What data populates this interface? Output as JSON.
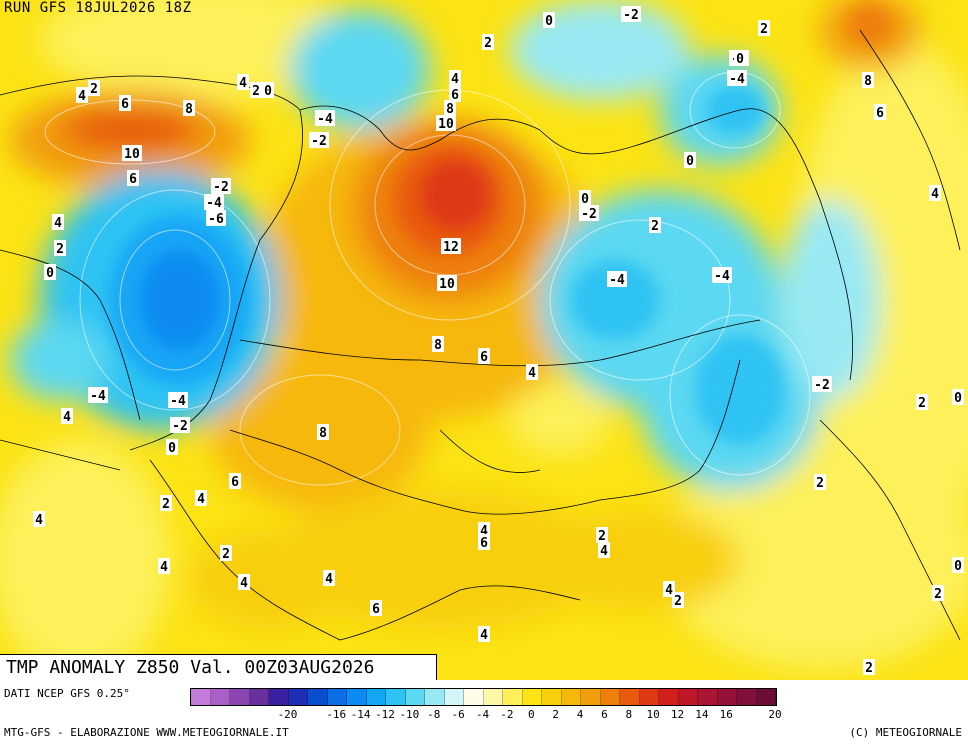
{
  "header": {
    "run": "RUN GFS 18JUL2026 18Z"
  },
  "title": "TMP ANOMALY Z850 Val. 00Z03AUG2026",
  "source": "DATI NCEP GFS 0.25°",
  "credit_left": "MTG-GFS - ELABORAZIONE WWW.METEOGIORNALE.IT",
  "credit_right": "(C) METEOGIORNALE",
  "colorscale": {
    "colors": [
      "#c27bd6",
      "#a95fc6",
      "#8b46b1",
      "#6a2f9f",
      "#3a1fa0",
      "#1e2fb5",
      "#0a4ed0",
      "#0a6ee6",
      "#0d8bf2",
      "#12a6f5",
      "#2ec3f3",
      "#5cd8f2",
      "#98e9f4",
      "#d4f6f8",
      "#fdfde8",
      "#fdf8a8",
      "#fdf05a",
      "#fbe314",
      "#f8cf0a",
      "#f6b80a",
      "#f29e0c",
      "#ee7f0c",
      "#e85a10",
      "#de3814",
      "#cf2119",
      "#be1828",
      "#a91533",
      "#941238",
      "#80103b",
      "#6c0d38"
    ],
    "ticks": [
      "-20",
      "-18",
      "-16",
      "-14",
      "-12",
      "-10",
      "-8",
      "-6",
      "-4",
      "-2",
      "0",
      "2",
      "4",
      "6",
      "8",
      "10",
      "12",
      "14",
      "16",
      "18",
      "20"
    ],
    "shown_ticks": [
      "-20",
      "-16",
      "-14",
      "-12",
      "-10",
      "-8",
      "-6",
      "-4",
      "-2",
      "0",
      "2",
      "4",
      "6",
      "8",
      "10",
      "12",
      "14",
      "16",
      "20"
    ]
  },
  "contour_labels": [
    {
      "v": "4"
    },
    {
      "v": "2"
    },
    {
      "v": "6"
    },
    {
      "v": "8"
    },
    {
      "v": "4"
    },
    {
      "v": "2"
    },
    {
      "v": "0"
    },
    {
      "v": "-4"
    },
    {
      "v": "-2"
    },
    {
      "v": "10"
    },
    {
      "v": "6"
    },
    {
      "v": "-2"
    },
    {
      "v": "-4"
    },
    {
      "v": "-6"
    },
    {
      "v": "4"
    },
    {
      "v": "2"
    },
    {
      "v": "0"
    },
    {
      "v": "-4"
    },
    {
      "v": "-4"
    },
    {
      "v": "-2"
    },
    {
      "v": "0"
    },
    {
      "v": "4"
    },
    {
      "v": "0"
    },
    {
      "v": "-2"
    },
    {
      "v": "2"
    },
    {
      "v": "4"
    },
    {
      "v": "6"
    },
    {
      "v": "8"
    },
    {
      "v": "10"
    },
    {
      "v": "12"
    },
    {
      "v": "10"
    },
    {
      "v": "8"
    },
    {
      "v": "6"
    },
    {
      "v": "4"
    },
    {
      "v": "0"
    },
    {
      "v": "-2"
    },
    {
      "v": "2"
    },
    {
      "v": "0"
    },
    {
      "v": "-2"
    },
    {
      "v": "-4"
    },
    {
      "v": "2"
    },
    {
      "v": "8"
    },
    {
      "v": "6"
    },
    {
      "v": "4"
    },
    {
      "v": "0"
    },
    {
      "v": "-4"
    },
    {
      "v": "-4"
    },
    {
      "v": "-2"
    },
    {
      "v": "2"
    },
    {
      "v": "0"
    },
    {
      "v": "2"
    },
    {
      "v": "4"
    },
    {
      "v": "2"
    },
    {
      "v": "4"
    },
    {
      "v": "6"
    },
    {
      "v": "8"
    },
    {
      "v": "4"
    },
    {
      "v": "6"
    },
    {
      "v": "2"
    },
    {
      "v": "4"
    },
    {
      "v": "4"
    },
    {
      "v": "2"
    },
    {
      "v": "4"
    },
    {
      "v": "2"
    },
    {
      "v": "4"
    },
    {
      "v": "6"
    },
    {
      "v": "4"
    },
    {
      "v": "4"
    },
    {
      "v": "2"
    },
    {
      "v": "0"
    },
    {
      "v": "2"
    }
  ]
}
